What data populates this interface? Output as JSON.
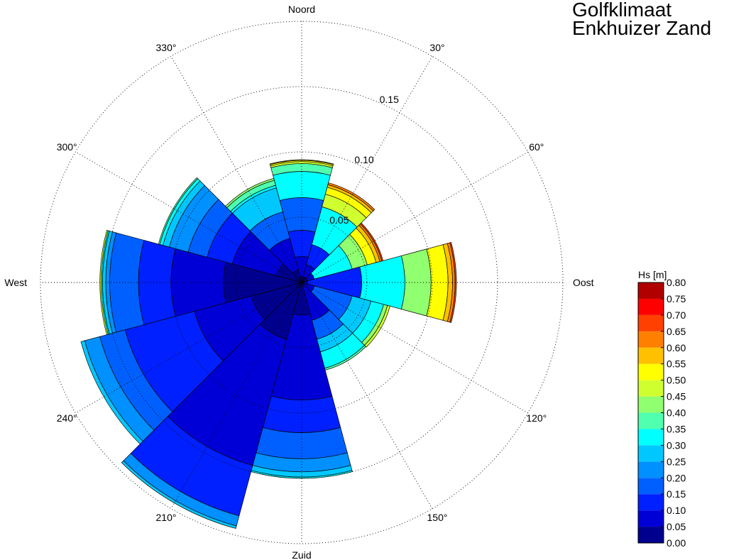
{
  "title": {
    "line1": "Golfklimaat",
    "line2": "Enkhuizer Zand"
  },
  "chart_data": {
    "type": "polar-stacked-bar",
    "direction_labels": {
      "north": "Noord",
      "east": "Oost",
      "south": "Zuid",
      "west": "West"
    },
    "angle_tick_labels": [
      "30°",
      "60°",
      "120°",
      "150°",
      "210°",
      "240°",
      "300°",
      "330°"
    ],
    "radial_tick_labels": [
      "0.05",
      "0.10",
      "0.15"
    ],
    "radial_ticks": [
      0.05,
      0.1,
      0.15
    ],
    "rmax": 0.2,
    "colorbar_label": "Hs [m]",
    "colorbar_ticks": [
      "0.80",
      "0.75",
      "0.70",
      "0.65",
      "0.60",
      "0.55",
      "0.50",
      "0.45",
      "0.40",
      "0.35",
      "0.30",
      "0.25",
      "0.20",
      "0.15",
      "0.10",
      "0.05",
      "0.00"
    ],
    "class_colors": [
      "#00008F",
      "#0000D6",
      "#0020FF",
      "#0060FF",
      "#0090FF",
      "#00C8FF",
      "#00FFFF",
      "#50FFB0",
      "#90FF70",
      "#D0FF30",
      "#FFFF00",
      "#FFC000",
      "#FF8000",
      "#FF4000",
      "#FF0000",
      "#B00000"
    ],
    "sectors": [
      {
        "direction": 0,
        "segments": [
          [
            0,
            0.0045
          ],
          [
            1,
            0.02
          ],
          [
            2,
            0.04
          ],
          [
            3,
            0.065
          ],
          [
            6,
            0.085
          ],
          [
            7,
            0.091
          ],
          [
            9,
            0.0925
          ],
          [
            10,
            0.0935
          ],
          [
            11,
            0.094
          ]
        ]
      },
      {
        "direction": 30,
        "segments": [
          [
            0,
            0.0045
          ],
          [
            1,
            0.014
          ],
          [
            2,
            0.03
          ],
          [
            6,
            0.06
          ],
          [
            9,
            0.07
          ],
          [
            10,
            0.0755
          ],
          [
            11,
            0.0775
          ],
          [
            12,
            0.079
          ]
        ]
      },
      {
        "direction": 60,
        "segments": [
          [
            0,
            0.0045
          ],
          [
            1,
            0.01
          ],
          [
            6,
            0.04
          ],
          [
            8,
            0.052
          ],
          [
            10,
            0.059
          ],
          [
            11,
            0.062
          ],
          [
            12,
            0.0635
          ],
          [
            13,
            0.0645
          ]
        ]
      },
      {
        "direction": 90,
        "segments": [
          [
            1,
            0.0045
          ],
          [
            2,
            0.046
          ],
          [
            6,
            0.079
          ],
          [
            8,
            0.099
          ],
          [
            10,
            0.112
          ],
          [
            11,
            0.1155
          ],
          [
            12,
            0.1175
          ],
          [
            13,
            0.1185
          ]
        ]
      },
      {
        "direction": 120,
        "segments": [
          [
            1,
            0.01
          ],
          [
            3,
            0.04
          ],
          [
            5,
            0.055
          ],
          [
            6,
            0.065
          ],
          [
            8,
            0.068
          ],
          [
            9,
            0.07
          ]
        ]
      },
      {
        "direction": 150,
        "segments": [
          [
            1,
            0.03
          ],
          [
            3,
            0.045
          ],
          [
            5,
            0.055
          ],
          [
            6,
            0.068
          ],
          [
            7,
            0.0695
          ]
        ]
      },
      {
        "direction": 180,
        "segments": [
          [
            0,
            0.025
          ],
          [
            1,
            0.09
          ],
          [
            2,
            0.115
          ],
          [
            3,
            0.135
          ],
          [
            4,
            0.145
          ],
          [
            5,
            0.149
          ],
          [
            6,
            0.15
          ]
        ]
      },
      {
        "direction": 210,
        "segments": [
          [
            0,
            0.045
          ],
          [
            1,
            0.145
          ],
          [
            2,
            0.185
          ],
          [
            4,
            0.193
          ],
          [
            5,
            0.195
          ]
        ]
      },
      {
        "direction": 240,
        "segments": [
          [
            0,
            0.04
          ],
          [
            1,
            0.085
          ],
          [
            2,
            0.14
          ],
          [
            3,
            0.16
          ],
          [
            4,
            0.172
          ],
          [
            5,
            0.175
          ]
        ]
      },
      {
        "direction": 270,
        "segments": [
          [
            0,
            0.06
          ],
          [
            1,
            0.1
          ],
          [
            2,
            0.125
          ],
          [
            3,
            0.147
          ],
          [
            4,
            0.15
          ],
          [
            5,
            0.1525
          ],
          [
            6,
            0.1535
          ],
          [
            9,
            0.1545
          ]
        ]
      },
      {
        "direction": 300,
        "segments": [
          [
            0,
            0.02
          ],
          [
            1,
            0.055
          ],
          [
            2,
            0.075
          ],
          [
            3,
            0.09
          ],
          [
            4,
            0.105
          ],
          [
            5,
            0.11
          ],
          [
            6,
            0.1125
          ],
          [
            7,
            0.1135
          ]
        ]
      },
      {
        "direction": 330,
        "segments": [
          [
            0,
            0.01
          ],
          [
            1,
            0.035
          ],
          [
            3,
            0.056
          ],
          [
            5,
            0.075
          ],
          [
            6,
            0.077
          ],
          [
            7,
            0.081
          ],
          [
            8,
            0.0825
          ]
        ]
      }
    ]
  }
}
